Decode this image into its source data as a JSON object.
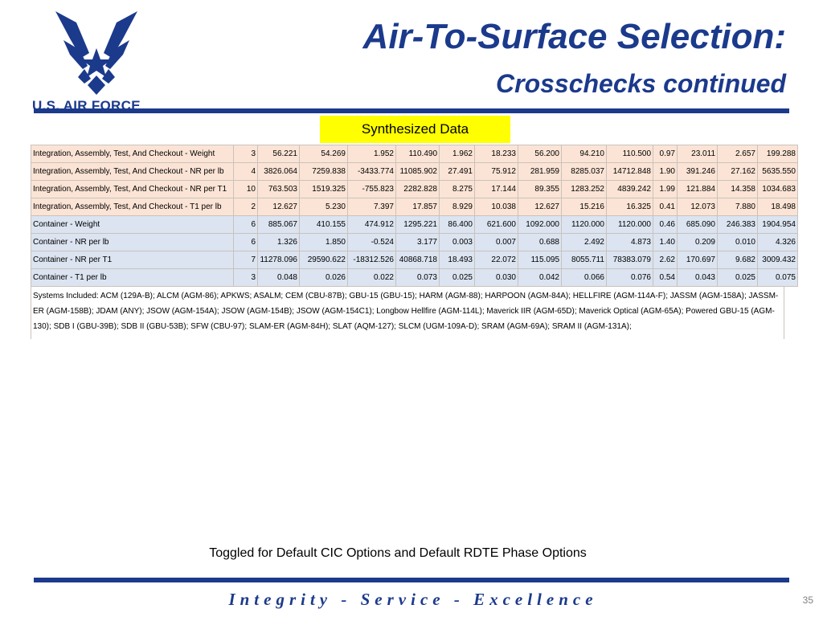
{
  "header": {
    "logo_text": "U.S. AIR FORCE",
    "title": "Air-To-Surface Selection:",
    "subtitle": "Crosschecks continued"
  },
  "badge": {
    "label": "Synthesized Data"
  },
  "table": {
    "rows": [
      {
        "style": "peach",
        "cells": [
          "Integration, Assembly, Test, And Checkout - Weight",
          "3",
          "56.221",
          "54.269",
          "1.952",
          "110.490",
          "1.962",
          "18.233",
          "56.200",
          "94.210",
          "110.500",
          "0.97",
          "23.011",
          "2.657",
          "199.288"
        ]
      },
      {
        "style": "peach",
        "cells": [
          "Integration, Assembly, Test, And Checkout - NR per lb",
          "4",
          "3826.064",
          "7259.838",
          "-3433.774",
          "11085.902",
          "27.491",
          "75.912",
          "281.959",
          "8285.037",
          "14712.848",
          "1.90",
          "391.246",
          "27.162",
          "5635.550"
        ]
      },
      {
        "style": "peach",
        "cells": [
          "Integration, Assembly, Test, And Checkout - NR per T1",
          "10",
          "763.503",
          "1519.325",
          "-755.823",
          "2282.828",
          "8.275",
          "17.144",
          "89.355",
          "1283.252",
          "4839.242",
          "1.99",
          "121.884",
          "14.358",
          "1034.683"
        ]
      },
      {
        "style": "peach",
        "cells": [
          "Integration, Assembly, Test, And Checkout - T1 per lb",
          "2",
          "12.627",
          "5.230",
          "7.397",
          "17.857",
          "8.929",
          "10.038",
          "12.627",
          "15.216",
          "16.325",
          "0.41",
          "12.073",
          "7.880",
          "18.498"
        ]
      },
      {
        "style": "blue",
        "cells": [
          "Container - Weight",
          "6",
          "885.067",
          "410.155",
          "474.912",
          "1295.221",
          "86.400",
          "621.600",
          "1092.000",
          "1120.000",
          "1120.000",
          "0.46",
          "685.090",
          "246.383",
          "1904.954"
        ]
      },
      {
        "style": "blue",
        "cells": [
          "Container - NR per lb",
          "6",
          "1.326",
          "1.850",
          "-0.524",
          "3.177",
          "0.003",
          "0.007",
          "0.688",
          "2.492",
          "4.873",
          "1.40",
          "0.209",
          "0.010",
          "4.326"
        ]
      },
      {
        "style": "blue",
        "cells": [
          "Container - NR per T1",
          "7",
          "11278.096",
          "29590.622",
          "-18312.526",
          "40868.718",
          "18.493",
          "22.072",
          "115.095",
          "8055.711",
          "78383.079",
          "2.62",
          "170.697",
          "9.682",
          "3009.432"
        ]
      },
      {
        "style": "blue",
        "cells": [
          "Container - T1 per lb",
          "3",
          "0.048",
          "0.026",
          "0.022",
          "0.073",
          "0.025",
          "0.030",
          "0.042",
          "0.066",
          "0.076",
          "0.54",
          "0.043",
          "0.025",
          "0.075"
        ]
      }
    ],
    "systems_included": "Systems Included: ACM (129A-B); ALCM (AGM-86); APKWS; ASALM; CEM (CBU-87B); GBU-15 (GBU-15); HARM (AGM-88); HARPOON (AGM-84A); HELLFIRE (AGM-114A-F); JASSM (AGM-158A); JASSM-ER (AGM-158B); JDAM (ANY); JSOW (AGM-154A); JSOW (AGM-154B); JSOW (AGM-154C1); Longbow Hellfire (AGM-114L); Maverick IIR (AGM-65D); Maverick Optical (AGM-65A); Powered GBU-15 (AGM-130); SDB I (GBU-39B); SDB II (GBU-53B); SFW (CBU-97); SLAM-ER (AGM-84H); SLAT (AQM-127); SLCM (UGM-109A-D); SRAM (AGM-69A); SRAM II (AGM-131A);"
  },
  "footnote": "Toggled for Default CIC Options and Default RDTE Phase Options",
  "footer": {
    "motto": "Integrity - Service - Excellence",
    "page_number": "35"
  },
  "colors": {
    "brand_blue": "#1b3a8c",
    "badge_yellow": "#ffff00",
    "row_peach": "#fbe4d5",
    "row_blue": "#dbe4f0"
  }
}
